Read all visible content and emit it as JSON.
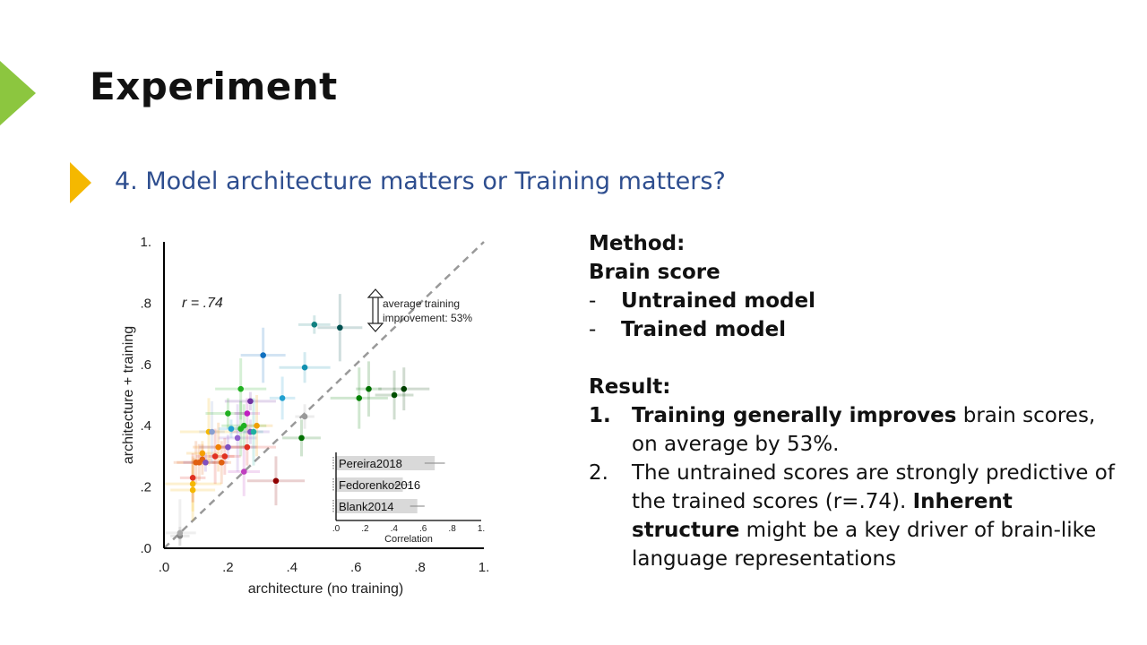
{
  "slide": {
    "title": "Experiment",
    "subtitle": "4. Model architecture matters or Training matters?"
  },
  "colors": {
    "accent_green": "#8cc63f",
    "accent_yellow": "#f5b800",
    "subtitle_blue": "#2e4e8f"
  },
  "method": {
    "heading": "Method:",
    "metric": "Brain score",
    "bullet_marker": "-",
    "items": [
      "Untrained model",
      "Trained model"
    ]
  },
  "result": {
    "heading": "Result:",
    "items": [
      {
        "num": "1.",
        "bold": "Training generally improves",
        "text": " brain scores, on average by 53%."
      },
      {
        "num": "2.",
        "text": "The untrained scores are strongly predictive of the trained scores (r=.74). ",
        "bold": "Inherent structure",
        "text2": " might be a key driver of brain-like language representations"
      }
    ]
  },
  "chart_data": {
    "type": "scatter",
    "xlabel": "architecture (no training)",
    "ylabel": "architecture + training",
    "xlim": [
      0,
      1
    ],
    "ylim": [
      0,
      1
    ],
    "xticks": [
      ".0",
      ".2",
      ".4",
      ".6",
      ".8",
      "1."
    ],
    "yticks": [
      ".0",
      ".2",
      ".4",
      ".6",
      ".8",
      "1."
    ],
    "annotation_r": "r = .74",
    "annotation_improvement": [
      "average training",
      "improvement: 53%"
    ],
    "diagonal": true,
    "points": [
      {
        "x": 0.05,
        "y": 0.04,
        "c": "#888888"
      },
      {
        "x": 0.05,
        "y": 0.05,
        "c": "#aaaaaa"
      },
      {
        "x": 0.09,
        "y": 0.19,
        "c": "#f5b800"
      },
      {
        "x": 0.09,
        "y": 0.21,
        "c": "#f5b800"
      },
      {
        "x": 0.09,
        "y": 0.23,
        "c": "#e03020"
      },
      {
        "x": 0.1,
        "y": 0.28,
        "c": "#e06010"
      },
      {
        "x": 0.11,
        "y": 0.28,
        "c": "#e06010"
      },
      {
        "x": 0.12,
        "y": 0.29,
        "c": "#e06010"
      },
      {
        "x": 0.12,
        "y": 0.31,
        "c": "#f5a000"
      },
      {
        "x": 0.13,
        "y": 0.28,
        "c": "#8050c0"
      },
      {
        "x": 0.14,
        "y": 0.38,
        "c": "#f5b800"
      },
      {
        "x": 0.15,
        "y": 0.38,
        "c": "#8aa0d0"
      },
      {
        "x": 0.16,
        "y": 0.3,
        "c": "#e03020"
      },
      {
        "x": 0.17,
        "y": 0.33,
        "c": "#f08000"
      },
      {
        "x": 0.18,
        "y": 0.28,
        "c": "#e06010"
      },
      {
        "x": 0.19,
        "y": 0.3,
        "c": "#e03020"
      },
      {
        "x": 0.2,
        "y": 0.44,
        "c": "#20b020"
      },
      {
        "x": 0.2,
        "y": 0.33,
        "c": "#8050c0"
      },
      {
        "x": 0.21,
        "y": 0.39,
        "c": "#20a0d0"
      },
      {
        "x": 0.23,
        "y": 0.36,
        "c": "#9060d0"
      },
      {
        "x": 0.24,
        "y": 0.52,
        "c": "#20b020"
      },
      {
        "x": 0.24,
        "y": 0.39,
        "c": "#20b020"
      },
      {
        "x": 0.25,
        "y": 0.25,
        "c": "#c040c0"
      },
      {
        "x": 0.25,
        "y": 0.4,
        "c": "#20b020"
      },
      {
        "x": 0.26,
        "y": 0.33,
        "c": "#e03020"
      },
      {
        "x": 0.26,
        "y": 0.44,
        "c": "#c020c0"
      },
      {
        "x": 0.27,
        "y": 0.38,
        "c": "#8050c0"
      },
      {
        "x": 0.27,
        "y": 0.48,
        "c": "#7030a0"
      },
      {
        "x": 0.28,
        "y": 0.38,
        "c": "#20b0a0"
      },
      {
        "x": 0.29,
        "y": 0.4,
        "c": "#f0a000"
      },
      {
        "x": 0.31,
        "y": 0.63,
        "c": "#1070c0"
      },
      {
        "x": 0.35,
        "y": 0.22,
        "c": "#900000"
      },
      {
        "x": 0.37,
        "y": 0.49,
        "c": "#20a0d0"
      },
      {
        "x": 0.43,
        "y": 0.36,
        "c": "#007000"
      },
      {
        "x": 0.44,
        "y": 0.59,
        "c": "#1090b0"
      },
      {
        "x": 0.44,
        "y": 0.43,
        "c": "#999999"
      },
      {
        "x": 0.47,
        "y": 0.73,
        "c": "#108080"
      },
      {
        "x": 0.55,
        "y": 0.72,
        "c": "#005050"
      },
      {
        "x": 0.61,
        "y": 0.49,
        "c": "#008000"
      },
      {
        "x": 0.64,
        "y": 0.52,
        "c": "#007000"
      },
      {
        "x": 0.72,
        "y": 0.5,
        "c": "#005000"
      },
      {
        "x": 0.75,
        "y": 0.52,
        "c": "#004000"
      }
    ],
    "inset": {
      "xlabel": "Correlation",
      "xticks": [
        ".0",
        ".2",
        ".4",
        ".6",
        ".8",
        "1."
      ],
      "bars": [
        {
          "label": "Pereira2018",
          "value": 0.68,
          "err": 0.07
        },
        {
          "label": "Fedorenko2016",
          "value": 0.46,
          "err": 0.06
        },
        {
          "label": "Blank2014",
          "value": 0.56,
          "err": 0.05
        }
      ]
    }
  }
}
